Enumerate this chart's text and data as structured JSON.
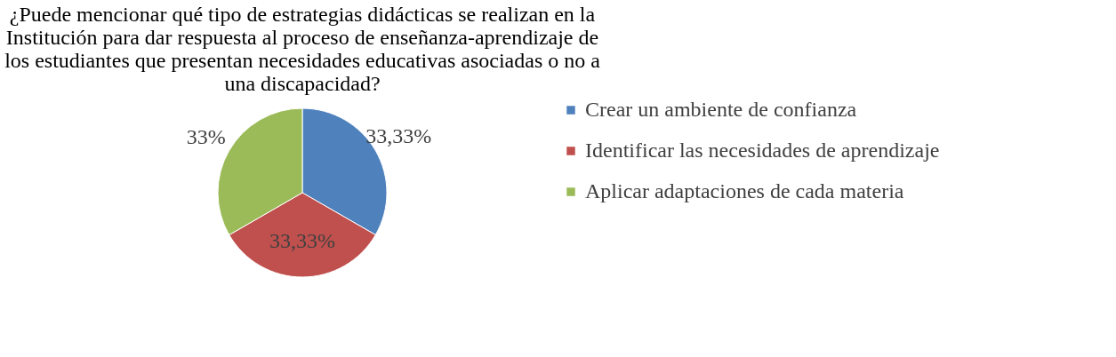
{
  "chart_data": {
    "type": "pie",
    "title": "¿Puede mencionar qué tipo de estrategias didácticas se realizan en la Institución para dar respuesta al proceso de enseñanza-aprendizaje de los estudiantes que presentan necesidades educativas asociadas o no a una discapacidad?",
    "categories": [
      "Crear un ambiente de confianza",
      "Identificar las necesidades de aprendizaje",
      "Aplicar adaptaciones de cada materia"
    ],
    "values": [
      33.33,
      33.33,
      33.34
    ],
    "value_labels": [
      "33,33%",
      "33,33%",
      "33%"
    ],
    "colors": [
      "#4f81bd",
      "#c0504d",
      "#9bbb59"
    ],
    "legend": "right"
  }
}
